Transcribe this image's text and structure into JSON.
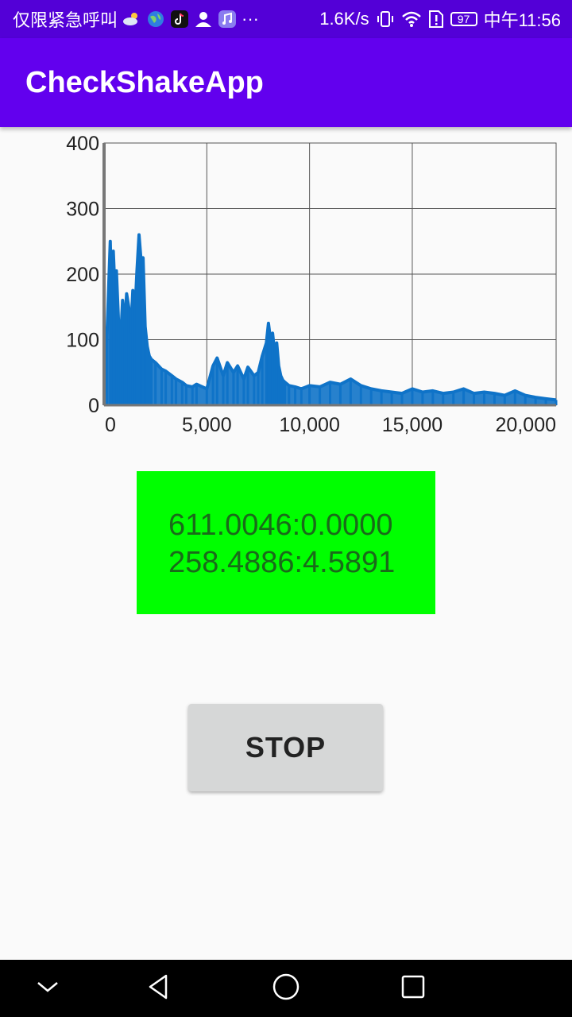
{
  "status_bar": {
    "carrier_text": "仅限紧急呼叫",
    "notification_icons": [
      "weather-icon",
      "browser-globe-icon",
      "tiktok-icon",
      "contact-icon",
      "music-icon",
      "more-notifications-icon"
    ],
    "overflow_text": "···",
    "network_speed": "1.6K/s",
    "battery_level": "97",
    "time": "中午11:56"
  },
  "app_bar": {
    "title": "CheckShakeApp"
  },
  "chart_data": {
    "type": "line",
    "title": "",
    "xlabel": "",
    "ylabel": "",
    "xlim": [
      0,
      22000
    ],
    "ylim": [
      0,
      400
    ],
    "x_ticks": [
      0,
      5000,
      10000,
      15000,
      20000
    ],
    "x_tick_labels": [
      "0",
      "5,000",
      "10,000",
      "15,000",
      "20,000"
    ],
    "y_ticks": [
      0,
      100,
      200,
      300,
      400
    ],
    "y_tick_labels": [
      "0",
      "100",
      "200",
      "300",
      "400"
    ],
    "grid": true,
    "series": [
      {
        "color": "#0f73c8",
        "x": [
          0,
          150,
          300,
          350,
          450,
          550,
          600,
          700,
          800,
          900,
          1000,
          1100,
          1200,
          1300,
          1400,
          1500,
          1600,
          1700,
          1800,
          1900,
          2000,
          2100,
          2200,
          2300,
          2500,
          2800,
          3000,
          3300,
          3500,
          3800,
          4000,
          4300,
          4500,
          5000,
          5300,
          5500,
          5800,
          6000,
          6300,
          6500,
          6800,
          7000,
          7300,
          7500,
          7700,
          7900,
          8000,
          8100,
          8200,
          8300,
          8400,
          8500,
          8600,
          8700,
          8800,
          9000,
          9300,
          9600,
          10000,
          10500,
          11000,
          11500,
          12000,
          12500,
          13000,
          13500,
          14000,
          14500,
          15000,
          15500,
          16000,
          16500,
          17000,
          17500,
          18000,
          18500,
          19000,
          19500,
          20000,
          20500,
          21000,
          21500,
          22000
        ],
        "y": [
          10,
          115,
          250,
          180,
          235,
          160,
          205,
          130,
          95,
          160,
          120,
          170,
          150,
          110,
          175,
          140,
          205,
          260,
          220,
          225,
          120,
          90,
          75,
          70,
          65,
          55,
          52,
          45,
          40,
          35,
          30,
          28,
          32,
          25,
          60,
          72,
          45,
          65,
          50,
          60,
          40,
          58,
          45,
          50,
          75,
          95,
          125,
          100,
          110,
          80,
          95,
          60,
          45,
          38,
          35,
          30,
          28,
          25,
          30,
          28,
          35,
          32,
          40,
          30,
          25,
          22,
          20,
          18,
          25,
          20,
          22,
          18,
          20,
          25,
          18,
          20,
          18,
          15,
          22,
          15,
          12,
          10,
          8
        ]
      }
    ]
  },
  "readout": {
    "line1": "611.0046:0.0000",
    "line2": "258.4886:4.5891"
  },
  "stop_button": {
    "label": "STOP"
  },
  "nav_bar": {
    "back": "back-triangle-icon",
    "home": "home-circle-icon",
    "recents": "recents-square-icon",
    "collapse": "chevron-down-icon"
  }
}
